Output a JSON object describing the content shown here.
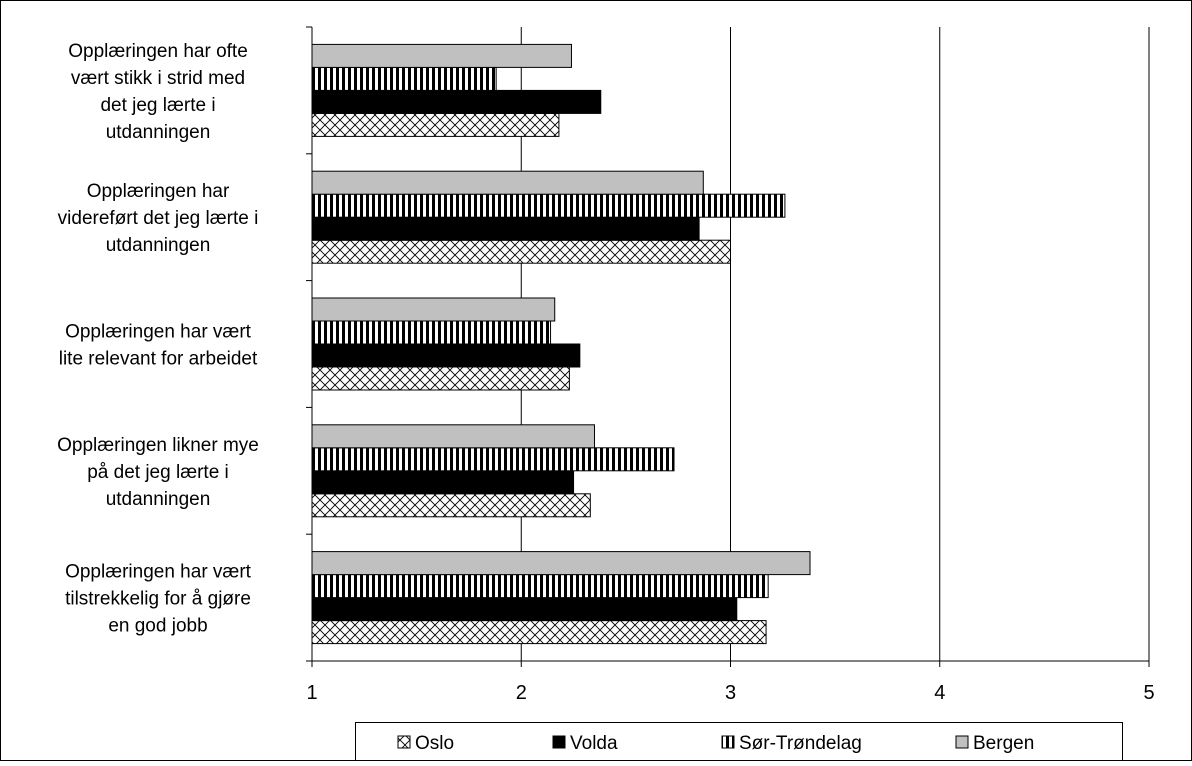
{
  "chart_data": {
    "type": "bar",
    "orientation": "horizontal",
    "categories": [
      [
        "Opplæringen har ofte",
        "vært stikk i strid med",
        "det jeg lærte i",
        "utdanningen"
      ],
      [
        "Opplæringen har",
        "videreført det jeg lærte i",
        "utdanningen"
      ],
      [
        "Opplæringen har vært",
        "lite relevant for arbeidet"
      ],
      [
        "Opplæringen likner mye",
        "på det jeg lærte i",
        "utdanningen"
      ],
      [
        "Opplæringen har vært",
        "tilstrekkelig for å gjøre",
        "en god jobb"
      ]
    ],
    "series": [
      {
        "name": "Oslo",
        "pattern": "crosshatch",
        "values": [
          2.18,
          3.0,
          2.23,
          2.33,
          3.17
        ]
      },
      {
        "name": "Volda",
        "pattern": "solid-black",
        "values": [
          2.38,
          2.85,
          2.28,
          2.25,
          3.03
        ]
      },
      {
        "name": "Sør-Trøndelag",
        "pattern": "vertical-stripes",
        "values": [
          1.88,
          3.26,
          2.14,
          2.73,
          3.18
        ]
      },
      {
        "name": "Bergen",
        "pattern": "solid-gray",
        "values": [
          2.24,
          2.87,
          2.16,
          2.35,
          3.38
        ]
      }
    ],
    "xlim": [
      1,
      5
    ],
    "xticks": [
      1,
      2,
      3,
      4,
      5
    ],
    "grid": "vertical",
    "legend_position": "bottom",
    "colors": {
      "gray": "#c0c0c0",
      "black": "#000000"
    }
  }
}
